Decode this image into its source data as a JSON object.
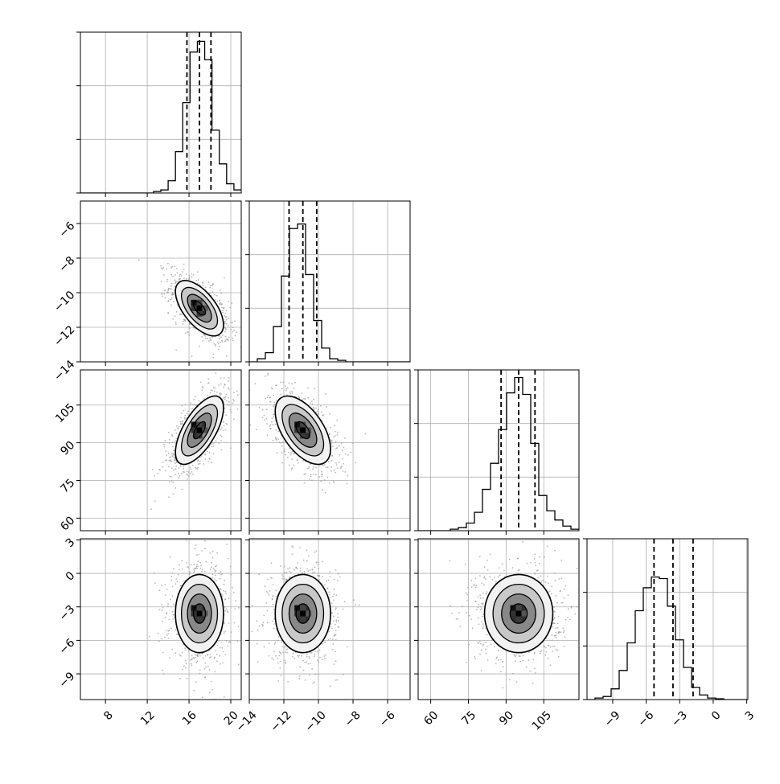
{
  "chart_data": {
    "type": "corner",
    "params": [
      {
        "id": "p0",
        "range": [
          5.6,
          21.0
        ],
        "ticks": [
          8,
          12,
          16,
          20
        ],
        "tick_labels": [
          "8",
          "12",
          "16",
          "20"
        ],
        "quantiles": [
          15.8,
          17.0,
          18.1
        ],
        "hist": [
          0,
          0,
          0,
          0,
          0,
          0,
          0,
          0,
          0,
          0,
          0.01,
          0.02,
          0.08,
          0.27,
          0.59,
          0.92,
          0.99,
          0.87,
          0.41,
          0.19,
          0.06,
          0.02
        ]
      },
      {
        "id": "p1",
        "range": [
          -14.0,
          -4.7
        ],
        "ticks": [
          -14,
          -12,
          -10,
          -8,
          -6
        ],
        "tick_labels": [
          "−14",
          "−12",
          "−10",
          "−8",
          "−6"
        ],
        "quantiles": [
          -11.7,
          -10.9,
          -10.1
        ],
        "hist": [
          0,
          0.02,
          0.06,
          0.23,
          0.56,
          0.87,
          0.9,
          0.57,
          0.27,
          0.09,
          0.02,
          0.01,
          0,
          0,
          0,
          0,
          0,
          0,
          0,
          0
        ]
      },
      {
        "id": "p2",
        "range": [
          55,
          119
        ],
        "ticks": [
          60,
          75,
          90,
          105
        ],
        "tick_labels": [
          "60",
          "75",
          "90",
          "105"
        ],
        "quantiles": [
          88.0,
          95.0,
          101.5
        ],
        "hist": [
          0,
          0,
          0,
          0,
          0.01,
          0.02,
          0.05,
          0.12,
          0.27,
          0.44,
          0.66,
          0.9,
          1.0,
          0.89,
          0.57,
          0.23,
          0.13,
          0.07,
          0.03,
          0.01
        ]
      },
      {
        "id": "p3",
        "range": [
          -11.3,
          3.1
        ],
        "ticks": [
          -9,
          -6,
          -3,
          0,
          3
        ],
        "tick_labels": [
          "−9",
          "−6",
          "−3",
          "0",
          "3"
        ],
        "quantiles": [
          -5.3,
          -3.6,
          -1.8
        ],
        "hist": [
          0,
          0.01,
          0.02,
          0.07,
          0.19,
          0.37,
          0.58,
          0.73,
          0.8,
          0.79,
          0.61,
          0.39,
          0.21,
          0.08,
          0.03,
          0.01,
          0.005,
          0,
          0,
          0
        ]
      }
    ],
    "pairs": [
      {
        "row": 1,
        "col": 0,
        "mean": [
          17.0,
          -10.9
        ],
        "sd": [
          1.15,
          0.8
        ],
        "rho": -0.6
      },
      {
        "row": 2,
        "col": 0,
        "mean": [
          17.0,
          95.0
        ],
        "sd": [
          1.15,
          6.8
        ],
        "rho": 0.65
      },
      {
        "row": 2,
        "col": 1,
        "mean": [
          -10.9,
          95.0
        ],
        "sd": [
          0.8,
          6.8
        ],
        "rho": -0.55
      },
      {
        "row": 3,
        "col": 0,
        "mean": [
          17.0,
          -3.6
        ],
        "sd": [
          1.15,
          1.75
        ],
        "rho": 0.0
      },
      {
        "row": 3,
        "col": 1,
        "mean": [
          -10.9,
          -3.6
        ],
        "sd": [
          0.8,
          1.75
        ],
        "rho": 0.0
      },
      {
        "row": 3,
        "col": 2,
        "mean": [
          95.0,
          -3.6
        ],
        "sd": [
          6.8,
          1.75
        ],
        "rho": 0.0
      }
    ],
    "contour_levels_sigma": [
      0.5,
      1.0,
      1.5,
      2.0
    ],
    "grid": true,
    "colors": {
      "line": "#000000",
      "grid": "#b0b0b0",
      "points": "#9a9a9a"
    }
  }
}
